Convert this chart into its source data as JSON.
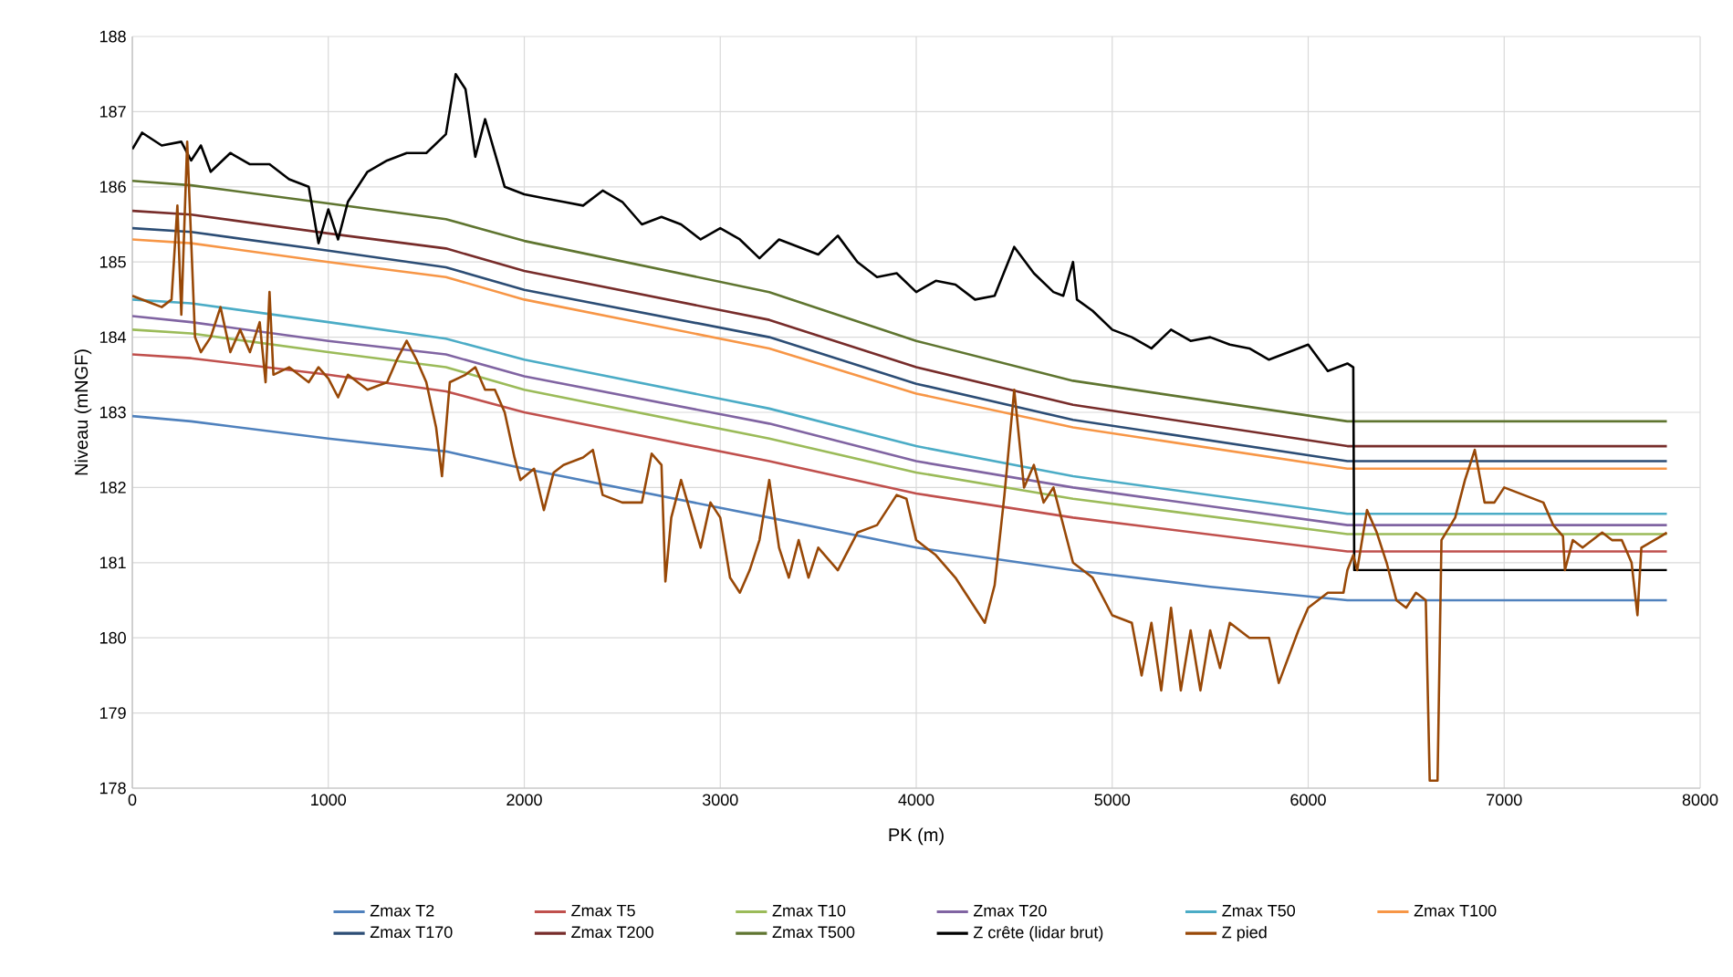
{
  "chart_data": {
    "type": "line",
    "xlabel": "PK (m)",
    "ylabel": "Niveau (mNGF)",
    "xlim": [
      0,
      8000
    ],
    "ylim": [
      178,
      188
    ],
    "xticks": [
      0,
      1000,
      2000,
      3000,
      4000,
      5000,
      6000,
      7000,
      8000
    ],
    "yticks": [
      178,
      179,
      180,
      181,
      182,
      183,
      184,
      185,
      186,
      187,
      188
    ],
    "grid": true,
    "legend": "bottom",
    "series": [
      {
        "name": "Zmax T2",
        "color": "#4f81bd",
        "x": [
          0,
          300,
          1000,
          1600,
          2000,
          3250,
          4000,
          4800,
          5500,
          6200,
          7830
        ],
        "values": [
          182.95,
          182.88,
          182.65,
          182.48,
          182.25,
          181.6,
          181.2,
          180.9,
          180.68,
          180.5,
          180.5
        ]
      },
      {
        "name": "Zmax T5",
        "color": "#c0504d",
        "x": [
          0,
          300,
          1000,
          1600,
          2000,
          3250,
          4000,
          4800,
          6200,
          7830
        ],
        "values": [
          183.77,
          183.72,
          183.5,
          183.28,
          183.0,
          182.35,
          181.92,
          181.6,
          181.15,
          181.15
        ]
      },
      {
        "name": "Zmax T10",
        "color": "#9bbb59",
        "x": [
          0,
          300,
          1000,
          1600,
          2000,
          3250,
          4000,
          4800,
          6200,
          7830
        ],
        "values": [
          184.1,
          184.05,
          183.8,
          183.6,
          183.3,
          182.65,
          182.2,
          181.85,
          181.38,
          181.38
        ]
      },
      {
        "name": "Zmax T20",
        "color": "#8064a2",
        "x": [
          0,
          300,
          1000,
          1600,
          2000,
          3250,
          4000,
          4800,
          6200,
          7830
        ],
        "values": [
          184.28,
          184.2,
          183.95,
          183.77,
          183.48,
          182.85,
          182.35,
          182.0,
          181.5,
          181.5
        ]
      },
      {
        "name": "Zmax T50",
        "color": "#4bacc6",
        "x": [
          0,
          300,
          1000,
          1600,
          2000,
          3250,
          4000,
          4800,
          6200,
          7830
        ],
        "values": [
          184.5,
          184.45,
          184.2,
          183.98,
          183.7,
          183.05,
          182.55,
          182.15,
          181.65,
          181.65
        ]
      },
      {
        "name": "Zmax T100",
        "color": "#f79646",
        "x": [
          0,
          300,
          1000,
          1600,
          2000,
          3250,
          4000,
          4800,
          6200,
          7830
        ],
        "values": [
          185.3,
          185.25,
          185.0,
          184.8,
          184.5,
          183.85,
          183.25,
          182.8,
          182.25,
          182.25
        ]
      },
      {
        "name": "Zmax T170",
        "color": "#2c4d75",
        "x": [
          0,
          300,
          1000,
          1600,
          2000,
          3250,
          4000,
          4800,
          6200,
          7830
        ],
        "values": [
          185.45,
          185.4,
          185.15,
          184.93,
          184.63,
          184.0,
          183.38,
          182.9,
          182.35,
          182.35
        ]
      },
      {
        "name": "Zmax T200",
        "color": "#772c2a",
        "x": [
          0,
          300,
          1000,
          1600,
          2000,
          3250,
          4000,
          4800,
          6200,
          7830
        ],
        "values": [
          185.68,
          185.63,
          185.38,
          185.18,
          184.88,
          184.23,
          183.6,
          183.1,
          182.55,
          182.55
        ]
      },
      {
        "name": "Zmax T500",
        "color": "#5f7530",
        "x": [
          0,
          300,
          1000,
          1600,
          2000,
          3250,
          4000,
          4800,
          6200,
          7830
        ],
        "values": [
          186.08,
          186.02,
          185.78,
          185.57,
          185.28,
          184.6,
          183.95,
          183.42,
          182.88,
          182.88
        ]
      },
      {
        "name": "Z crête (lidar brut)",
        "color": "#000000",
        "x": [
          0,
          50,
          150,
          250,
          300,
          350,
          400,
          500,
          600,
          700,
          800,
          900,
          950,
          1000,
          1050,
          1100,
          1200,
          1300,
          1400,
          1500,
          1600,
          1650,
          1700,
          1750,
          1800,
          1900,
          2000,
          2100,
          2200,
          2300,
          2400,
          2500,
          2600,
          2700,
          2800,
          2900,
          3000,
          3100,
          3200,
          3300,
          3400,
          3500,
          3600,
          3700,
          3800,
          3900,
          4000,
          4100,
          4200,
          4300,
          4400,
          4500,
          4600,
          4700,
          4750,
          4800,
          4820,
          4900,
          5000,
          5100,
          5200,
          5300,
          5400,
          5500,
          5600,
          5700,
          5800,
          5900,
          6000,
          6100,
          6200,
          6230,
          6235,
          7830
        ],
        "values": [
          186.5,
          186.72,
          186.55,
          186.6,
          186.35,
          186.55,
          186.2,
          186.45,
          186.3,
          186.3,
          186.1,
          186.0,
          185.25,
          185.7,
          185.3,
          185.8,
          186.2,
          186.35,
          186.45,
          186.45,
          186.7,
          187.5,
          187.3,
          186.4,
          186.9,
          186.0,
          185.9,
          185.85,
          185.8,
          185.75,
          185.95,
          185.8,
          185.5,
          185.6,
          185.5,
          185.3,
          185.45,
          185.3,
          185.05,
          185.3,
          185.2,
          185.1,
          185.35,
          185.0,
          184.8,
          184.85,
          184.6,
          184.75,
          184.7,
          184.5,
          184.55,
          185.2,
          184.85,
          184.6,
          184.55,
          185.0,
          184.5,
          184.35,
          184.1,
          184.0,
          183.85,
          184.1,
          183.95,
          184.0,
          183.9,
          183.85,
          183.7,
          183.8,
          183.9,
          183.55,
          183.65,
          183.6,
          180.9,
          180.9
        ]
      },
      {
        "name": "Z pied",
        "color": "#984807",
        "x": [
          0,
          100,
          150,
          200,
          230,
          250,
          280,
          320,
          350,
          400,
          450,
          500,
          550,
          600,
          650,
          680,
          700,
          720,
          800,
          900,
          950,
          1000,
          1050,
          1100,
          1200,
          1300,
          1350,
          1400,
          1450,
          1500,
          1550,
          1580,
          1620,
          1700,
          1750,
          1800,
          1850,
          1900,
          1950,
          1980,
          2050,
          2100,
          2150,
          2200,
          2300,
          2350,
          2400,
          2500,
          2600,
          2650,
          2700,
          2720,
          2750,
          2800,
          2900,
          2950,
          3000,
          3050,
          3100,
          3150,
          3200,
          3250,
          3300,
          3350,
          3400,
          3450,
          3500,
          3600,
          3700,
          3800,
          3900,
          3950,
          4000,
          4100,
          4200,
          4300,
          4350,
          4400,
          4450,
          4500,
          4550,
          4600,
          4650,
          4700,
          4750,
          4800,
          4900,
          5000,
          5100,
          5150,
          5200,
          5250,
          5300,
          5350,
          5400,
          5450,
          5500,
          5550,
          5600,
          5700,
          5800,
          5850,
          5950,
          6000,
          6100,
          6180,
          6200,
          6230,
          6250,
          6300,
          6350,
          6400,
          6450,
          6500,
          6550,
          6600,
          6620,
          6660,
          6680,
          6750,
          6800,
          6850,
          6900,
          6950,
          7000,
          7100,
          7200,
          7250,
          7300,
          7310,
          7350,
          7400,
          7450,
          7500,
          7550,
          7600,
          7650,
          7680,
          7700,
          7800,
          7830
        ],
        "values": [
          184.55,
          184.45,
          184.4,
          184.5,
          185.75,
          184.3,
          186.6,
          184.0,
          183.8,
          184.0,
          184.4,
          183.8,
          184.1,
          183.8,
          184.2,
          183.4,
          184.6,
          183.5,
          183.6,
          183.4,
          183.6,
          183.45,
          183.2,
          183.5,
          183.3,
          183.4,
          183.7,
          183.95,
          183.7,
          183.4,
          182.8,
          182.15,
          183.4,
          183.5,
          183.6,
          183.3,
          183.3,
          183.0,
          182.4,
          182.1,
          182.25,
          181.7,
          182.2,
          182.3,
          182.4,
          182.5,
          181.9,
          181.8,
          181.8,
          182.45,
          182.3,
          180.75,
          181.6,
          182.1,
          181.2,
          181.8,
          181.6,
          180.8,
          180.6,
          180.9,
          181.3,
          182.1,
          181.2,
          180.8,
          181.3,
          180.8,
          181.2,
          180.9,
          181.4,
          181.5,
          181.9,
          181.85,
          181.3,
          181.1,
          180.8,
          180.4,
          180.2,
          180.7,
          181.9,
          183.3,
          182.0,
          182.3,
          181.8,
          182.0,
          181.5,
          181.0,
          180.8,
          180.3,
          180.2,
          179.5,
          180.2,
          179.3,
          180.4,
          179.3,
          180.1,
          179.3,
          180.1,
          179.6,
          180.2,
          180.0,
          180.0,
          179.4,
          180.1,
          180.4,
          180.6,
          180.6,
          180.9,
          181.1,
          180.9,
          181.7,
          181.4,
          181.0,
          180.5,
          180.4,
          180.6,
          180.5,
          178.1,
          178.1,
          181.3,
          181.6,
          182.1,
          182.5,
          181.8,
          181.8,
          182.0,
          181.9,
          181.8,
          181.5,
          181.35,
          180.9,
          181.3,
          181.2,
          181.3,
          181.4,
          181.3,
          181.3,
          181.0,
          180.3,
          181.2,
          181.35,
          181.4
        ]
      }
    ]
  }
}
